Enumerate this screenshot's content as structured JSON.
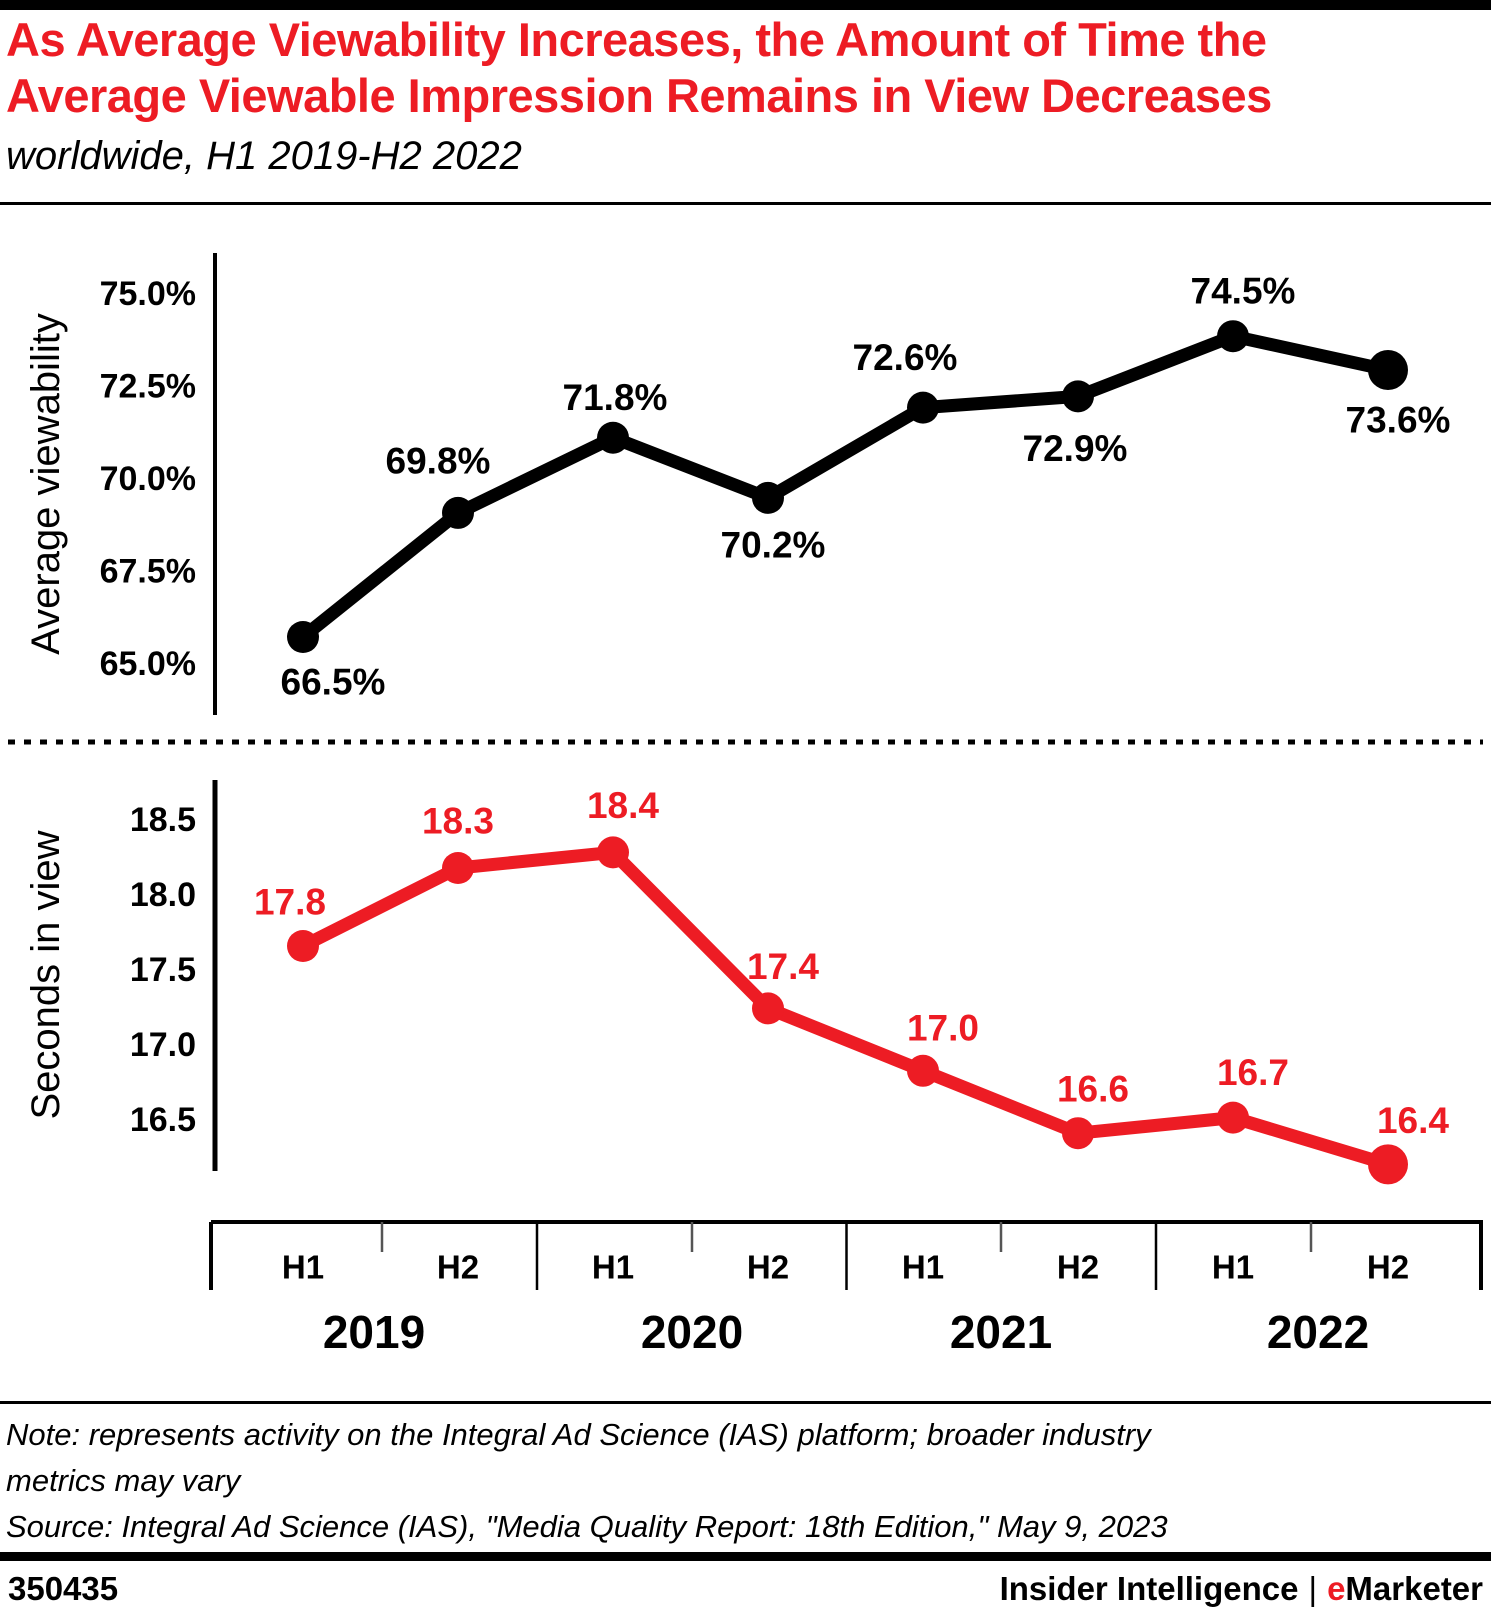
{
  "page": {
    "background": "#ffffff",
    "accent_red": "#ed1c24",
    "line_black": "#000000"
  },
  "header": {
    "title_line1": "As Average Viewability Increases, the Amount of Time the",
    "title_line2": "Average Viewable Impression Remains in View Decreases",
    "subtitle": "worldwide, H1 2019-H2 2022"
  },
  "chart_data": [
    {
      "type": "line",
      "name": "average-viewability",
      "ylabel": "Average viewability",
      "series_color": "#000000",
      "categories": [
        "H1 2019",
        "H2 2019",
        "H1 2020",
        "H2 2020",
        "H1 2021",
        "H2 2021",
        "H1 2022",
        "H2 2022"
      ],
      "values": [
        66.5,
        69.8,
        71.8,
        70.2,
        72.6,
        72.9,
        74.5,
        73.6
      ],
      "point_labels": [
        "66.5%",
        "69.8%",
        "71.8%",
        "70.2%",
        "72.6%",
        "72.9%",
        "74.5%",
        "73.6%"
      ],
      "yticks": [
        75.0,
        72.5,
        70.0,
        67.5,
        65.0
      ],
      "ytick_labels": [
        "75.0%",
        "72.5%",
        "70.0%",
        "67.5%",
        "65.0%"
      ],
      "ylim": [
        65.0,
        75.0
      ],
      "grid": false,
      "legend_position": "none"
    },
    {
      "type": "line",
      "name": "seconds-in-view",
      "ylabel": "Seconds in view",
      "series_color": "#ed1c24",
      "categories": [
        "H1 2019",
        "H2 2019",
        "H1 2020",
        "H2 2020",
        "H1 2021",
        "H2 2021",
        "H1 2022",
        "H2 2022"
      ],
      "values": [
        17.8,
        18.3,
        18.4,
        17.4,
        17.0,
        16.6,
        16.7,
        16.4
      ],
      "point_labels": [
        "17.8",
        "18.3",
        "18.4",
        "17.4",
        "17.0",
        "16.6",
        "16.7",
        "16.4"
      ],
      "yticks": [
        18.5,
        18.0,
        17.5,
        17.0,
        16.5
      ],
      "ytick_labels": [
        "18.5",
        "18.0",
        "17.5",
        "17.0",
        "16.5"
      ],
      "ylim": [
        16.5,
        18.5
      ],
      "grid": false,
      "legend_position": "none"
    }
  ],
  "x_axis": {
    "half_labels": [
      "H1",
      "H2",
      "H1",
      "H2",
      "H1",
      "H2",
      "H1",
      "H2"
    ],
    "year_labels": [
      "2019",
      "2020",
      "2021",
      "2022"
    ]
  },
  "footnote": {
    "note_line1": "Note: represents activity on the Integral Ad Science (IAS) platform; broader industry",
    "note_line2": "metrics may vary",
    "source": "Source: Integral Ad Science (IAS), \"Media Quality Report: 18th Edition,\" May 9, 2023"
  },
  "footer": {
    "chart_id": "350435",
    "brand_primary": "Insider Intelligence",
    "separator": "|",
    "brand_e": "e",
    "brand_rest": "Marketer"
  }
}
